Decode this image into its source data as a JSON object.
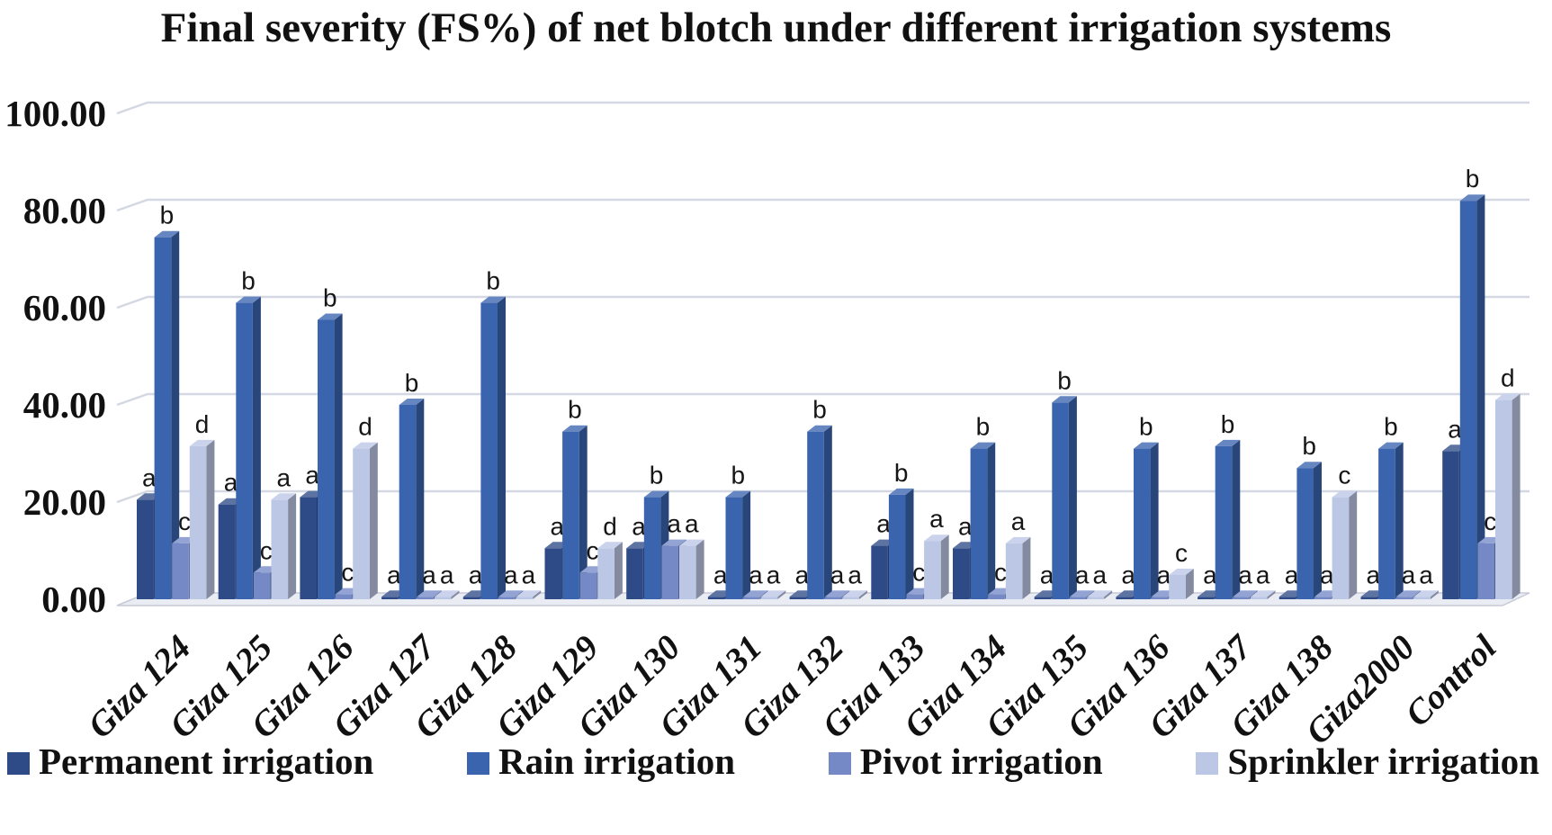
{
  "title": "Final severity (FS%) of net blotch under different irrigation systems",
  "chart_data": {
    "type": "bar",
    "subtype": "3d-clustered-column",
    "title": "Final severity (FS%) of net blotch under different irrigation systems",
    "categories": [
      "Giza 124",
      "Giza 125",
      "Giza 126",
      "Giza 127",
      "Giza 128",
      "Giza 129",
      "Giza 130",
      "Giza 131",
      "Giza 132",
      "Giza 133",
      "Giza 134",
      "Giza 135",
      "Giza 136",
      "Giza 137",
      "Giza 138",
      "Giza2000",
      "Control"
    ],
    "series": [
      {
        "name": "Permanent irrigation",
        "color": "#2F4B87",
        "values": [
          20.5,
          19.5,
          21.0,
          0.5,
          0.5,
          10.5,
          10.5,
          0.5,
          0.5,
          11.0,
          10.5,
          0.5,
          0.5,
          0.5,
          0.5,
          0.5,
          30.5
        ],
        "significance_letters": [
          "a",
          "a",
          "a",
          "a",
          "a",
          "a",
          "a",
          "a",
          "a",
          "a",
          "a",
          "a",
          "a",
          "a",
          "a",
          "a",
          "a"
        ]
      },
      {
        "name": "Rain irrigation",
        "color": "#3B64AF",
        "values": [
          74.5,
          61.0,
          57.5,
          40.0,
          61.0,
          34.5,
          21.0,
          21.0,
          34.5,
          21.5,
          31.0,
          40.5,
          31.0,
          31.5,
          27.0,
          31.0,
          82.0
        ],
        "significance_letters": [
          "b",
          "b",
          "b",
          "b",
          "b",
          "b",
          "b",
          "b",
          "b",
          "b",
          "b",
          "b",
          "b",
          "b",
          "b",
          "b",
          "b"
        ]
      },
      {
        "name": "Pivot irrigation",
        "color": "#7489C6",
        "values": [
          11.5,
          5.5,
          1.0,
          0.5,
          0.5,
          5.5,
          11.0,
          0.5,
          0.5,
          1.0,
          1.0,
          0.5,
          0.5,
          0.5,
          0.5,
          0.5,
          11.5
        ],
        "significance_letters": [
          "c",
          "c",
          "c",
          "a",
          "a",
          "c",
          "a",
          "a",
          "a",
          "c",
          "c",
          "a",
          "a",
          "a",
          "a",
          "a",
          "c"
        ]
      },
      {
        "name": "Sprinkler irrigation",
        "color": "#BCC7E6",
        "values": [
          31.5,
          20.5,
          31.0,
          0.5,
          0.5,
          10.5,
          11.0,
          0.5,
          0.5,
          12.0,
          11.5,
          0.5,
          5.0,
          0.5,
          21.0,
          0.5,
          41.0
        ],
        "significance_letters": [
          "d",
          "a",
          "d",
          "a",
          "a",
          "d",
          "a",
          "a",
          "a",
          "a",
          "a",
          "a",
          "c",
          "a",
          "c",
          "a",
          "d"
        ]
      }
    ],
    "y_axis": {
      "min": 0,
      "max": 100,
      "tick_interval": 20,
      "tick_labels": [
        "0.00",
        "20.00",
        "40.00",
        "60.00",
        "80.00",
        "100.00"
      ]
    },
    "x_axis": {
      "label_rotation_deg": -45
    },
    "legend": {
      "position": "bottom"
    },
    "grid": true,
    "colors": {
      "gridline": "#d4d8e2",
      "floor_fill": "#eaecf3",
      "floor_edge": "#c6cad6",
      "text": "#111111"
    }
  }
}
